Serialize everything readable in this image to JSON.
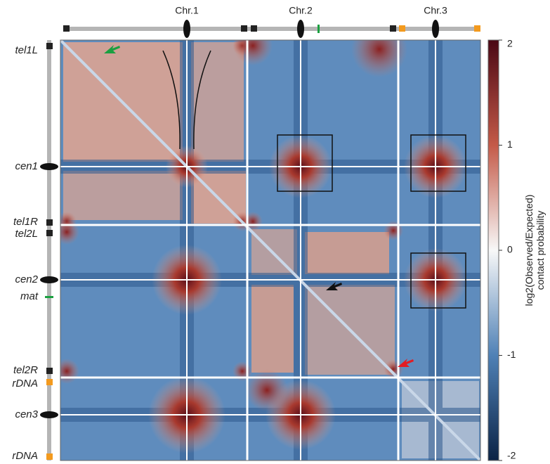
{
  "chart_data": {
    "type": "heatmap",
    "column_labels": [
      "Chr.1",
      "Chr.2",
      "Chr.3"
    ],
    "row_labels": [
      "tel1L",
      "cen1",
      "tel1R",
      "tel2L",
      "cen2",
      "mat",
      "tel2R",
      "rDNA",
      "cen3",
      "rDNA"
    ],
    "colorbar": {
      "label": [
        "log2(Observed/Expected)",
        "contact probability"
      ],
      "lim": [
        -2,
        2
      ],
      "ticks": [
        2,
        1,
        0,
        -1,
        -2
      ]
    }
  }
}
